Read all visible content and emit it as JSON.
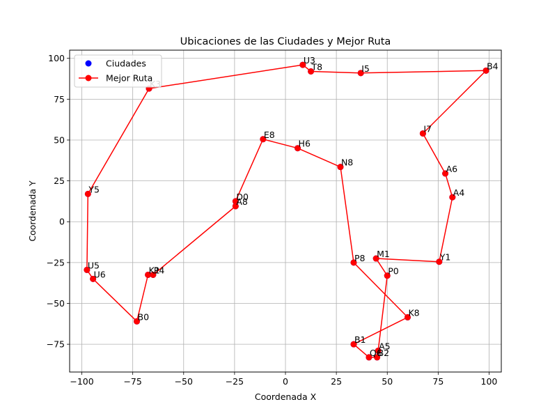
{
  "chart_data": {
    "type": "scatter",
    "title": "Ubicaciones de las Ciudades y Mejor Ruta",
    "xlabel": "Coordenada X",
    "ylabel": "Coordenada Y",
    "xlim": [
      -106,
      106
    ],
    "ylim": [
      -92,
      105
    ],
    "xticks": [
      -100,
      -75,
      -50,
      -25,
      0,
      25,
      50,
      75,
      100
    ],
    "yticks": [
      -75,
      -50,
      -25,
      0,
      25,
      50,
      75,
      100
    ],
    "grid": true,
    "legend_position": "top-left",
    "series": [
      {
        "name": "Ciudades",
        "kind": "points",
        "color": "#0000ff"
      },
      {
        "name": "Mejor Ruta",
        "kind": "line",
        "color": "#ff0000"
      }
    ],
    "cities": [
      {
        "label": "U3",
        "x": 8.5,
        "y": 96
      },
      {
        "label": "T8",
        "x": 12.5,
        "y": 92
      },
      {
        "label": "I5",
        "x": 37,
        "y": 91
      },
      {
        "label": "B4",
        "x": 98.5,
        "y": 92.5
      },
      {
        "label": "I7",
        "x": 67.5,
        "y": 54
      },
      {
        "label": "A6",
        "x": 78.5,
        "y": 29.5
      },
      {
        "label": "A4",
        "x": 82,
        "y": 15
      },
      {
        "label": "Y1",
        "x": 75.5,
        "y": -24.5
      },
      {
        "label": "M1",
        "x": 44.5,
        "y": -22.5
      },
      {
        "label": "P0",
        "x": 50,
        "y": -33
      },
      {
        "label": "A5",
        "x": 45.5,
        "y": -79
      },
      {
        "label": "B2",
        "x": 45,
        "y": -83
      },
      {
        "label": "Q6",
        "x": 41,
        "y": -83
      },
      {
        "label": "B1",
        "x": 33.5,
        "y": -75
      },
      {
        "label": "K8",
        "x": 60,
        "y": -58.5
      },
      {
        "label": "P8",
        "x": 33.5,
        "y": -25
      },
      {
        "label": "N8",
        "x": 27,
        "y": 33.5
      },
      {
        "label": "H6",
        "x": 6,
        "y": 45
      },
      {
        "label": "E8",
        "x": -11,
        "y": 50.5
      },
      {
        "label": "D0",
        "x": -24.5,
        "y": 12.5
      },
      {
        "label": "A8",
        "x": -24.5,
        "y": 9.5
      },
      {
        "label": "P4",
        "x": -65,
        "y": -32.5
      },
      {
        "label": "K1",
        "x": -67.5,
        "y": -32.5
      },
      {
        "label": "B0",
        "x": -73,
        "y": -61
      },
      {
        "label": "U6",
        "x": -94.5,
        "y": -35
      },
      {
        "label": "U5",
        "x": -97.5,
        "y": -29.5
      },
      {
        "label": "Y5",
        "x": -97,
        "y": 17
      },
      {
        "label": "K3",
        "x": -67,
        "y": 81.5
      }
    ],
    "route": [
      "U3",
      "T8",
      "I5",
      "B4",
      "I7",
      "A6",
      "A4",
      "Y1",
      "M1",
      "P0",
      "A5",
      "B2",
      "Q6",
      "B1",
      "K8",
      "P8",
      "N8",
      "H6",
      "E8",
      "D0",
      "A8",
      "P4",
      "K1",
      "B0",
      "U6",
      "U5",
      "Y5",
      "K3",
      "U3"
    ]
  }
}
